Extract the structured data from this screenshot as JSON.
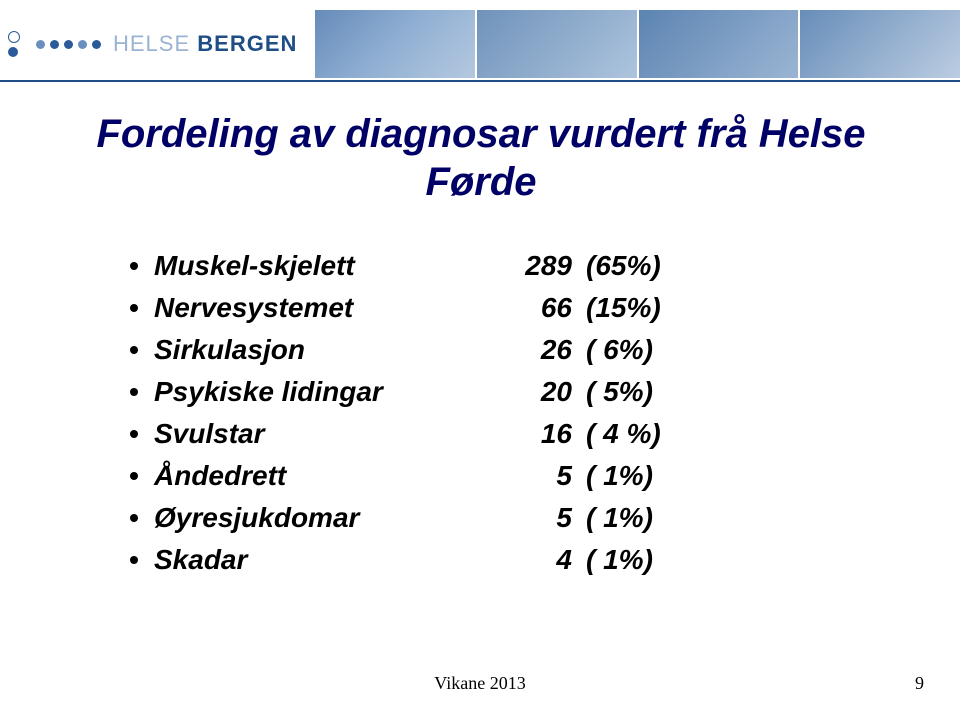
{
  "header": {
    "logo_light": "HELSE",
    "logo_bold": "BERGEN",
    "line_color": "#1f4e87",
    "banner_colors": [
      "#4a77ad",
      "#567fae",
      "#3f6ea4",
      "#4c79ac"
    ]
  },
  "title": {
    "text": "Fordeling av diagnosar vurdert frå Helse Førde",
    "color": "#000066",
    "font_style": "italic",
    "font_weight": "bold",
    "font_size_pt": 30
  },
  "list": {
    "font_size_pt": 21,
    "font_style": "italic",
    "font_weight": "bold",
    "text_color": "#000000",
    "bullet_color": "#000000",
    "items": [
      {
        "label": "Muskel-skjelett",
        "value": "289",
        "pct": "(65%)"
      },
      {
        "label": "Nervesystemet",
        "value": "66",
        "pct": "(15%)"
      },
      {
        "label": "Sirkulasjon",
        "value": "26",
        "pct": "( 6%)"
      },
      {
        "label": "Psykiske lidingar",
        "value": "20",
        "pct": "( 5%)"
      },
      {
        "label": "Svulstar",
        "value": "16",
        "pct": "( 4 %)"
      },
      {
        "label": "Åndedrett",
        "value": "5",
        "pct": "( 1%)"
      },
      {
        "label": "Øyresjukdomar",
        "value": "5",
        "pct": "( 1%)"
      },
      {
        "label": "Skadar",
        "value": "4",
        "pct": "( 1%)"
      }
    ]
  },
  "footer": {
    "text": "Vikane 2013",
    "page": "9",
    "font_family": "Times New Roman",
    "font_size_pt": 14,
    "color": "#000000"
  }
}
